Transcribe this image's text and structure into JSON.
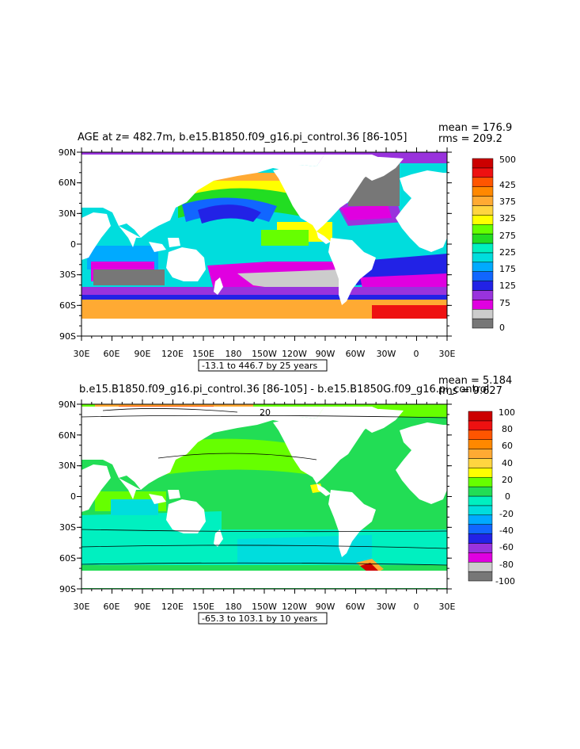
{
  "colors": {
    "land": "#ffffff",
    "frame": "#000000",
    "age_palette": [
      "#777777",
      "#cccccc",
      "#e000e0",
      "#9933dd",
      "#2222e6",
      "#1166ff",
      "#00aaff",
      "#00dddd",
      "#00f0c0",
      "#22dd22",
      "#66ff00",
      "#ffff00",
      "#ffd540",
      "#ffaa33",
      "#ff8800",
      "#ff5500",
      "#ee1111",
      "#cc0000"
    ],
    "diff_palette": [
      "#777777",
      "#cccccc",
      "#e000e0",
      "#9933dd",
      "#2222e6",
      "#1166ff",
      "#00aaff",
      "#00dddd",
      "#00f0c0",
      "#22dd55",
      "#66ff00",
      "#ffff00",
      "#ffd540",
      "#ffaa33",
      "#ff8800",
      "#ff5500",
      "#ee1111",
      "#cc0000"
    ]
  },
  "panel1": {
    "title": "AGE at z= 482.7m, b.e15.B1850.f09_g16.pi_control.36 [86-105]",
    "mean": "mean = 176.9",
    "rms": "rms = 209.2",
    "info": "-13.1 to 446.7 by 25 years",
    "colorbar_labels": [
      "0",
      "75",
      "125",
      "175",
      "225",
      "275",
      "325",
      "375",
      "425",
      "500"
    ]
  },
  "panel2": {
    "title": "b.e15.B1850.f09_g16.pi_control.36 [86-105] - b.e15.B1850G.f09_g16.pi_control",
    "mean": "mean = 5.184",
    "rms": "rms = 9.627",
    "info": "-65.3 to 103.1 by 10 years",
    "colorbar_labels": [
      "-100",
      "-80",
      "-60",
      "-40",
      "-20",
      "0",
      "20",
      "40",
      "60",
      "80",
      "100"
    ],
    "contour_label": "20"
  },
  "axes": {
    "lat_labels": [
      "90N",
      "60N",
      "30N",
      "0",
      "30S",
      "60S",
      "90S"
    ],
    "lon_labels": [
      "30E",
      "60E",
      "90E",
      "120E",
      "150E",
      "180",
      "150W",
      "120W",
      "90W",
      "60W",
      "30W",
      "0",
      "30E"
    ]
  },
  "chart_data": [
    {
      "type": "heatmap",
      "title": "AGE at z= 482.7m, b.e15.B1850.f09_g16.pi_control.36 [86-105]",
      "xlim": [
        "30E",
        "30E"
      ],
      "ylim": [
        "90S",
        "90N"
      ],
      "x_ticks": [
        "30E",
        "60E",
        "90E",
        "120E",
        "150E",
        "180",
        "150W",
        "120W",
        "90W",
        "60W",
        "30W",
        "0",
        "30E"
      ],
      "y_ticks": [
        "90N",
        "60N",
        "30N",
        "0",
        "30S",
        "60S",
        "90S"
      ],
      "colorbar_ticks": [
        0,
        75,
        125,
        175,
        225,
        275,
        325,
        375,
        425,
        500
      ],
      "stats": {
        "mean": 176.9,
        "rms": 209.2
      },
      "range": {
        "min": -13.1,
        "max": 446.7,
        "interval": 25,
        "unit": "years"
      }
    },
    {
      "type": "heatmap",
      "title": "b.e15.B1850.f09_g16.pi_control.36 [86-105] - b.e15.B1850G.f09_g16.pi_control",
      "xlim": [
        "30E",
        "30E"
      ],
      "ylim": [
        "90S",
        "90N"
      ],
      "x_ticks": [
        "30E",
        "60E",
        "90E",
        "120E",
        "150E",
        "180",
        "150W",
        "120W",
        "90W",
        "60W",
        "30W",
        "0",
        "30E"
      ],
      "y_ticks": [
        "90N",
        "60N",
        "30N",
        "0",
        "30S",
        "60S",
        "90S"
      ],
      "colorbar_ticks": [
        -100,
        -80,
        -60,
        -40,
        -20,
        0,
        20,
        40,
        60,
        80,
        100
      ],
      "stats": {
        "mean": 5.184,
        "rms": 9.627
      },
      "range": {
        "min": -65.3,
        "max": 103.1,
        "interval": 10,
        "unit": "years"
      }
    }
  ]
}
